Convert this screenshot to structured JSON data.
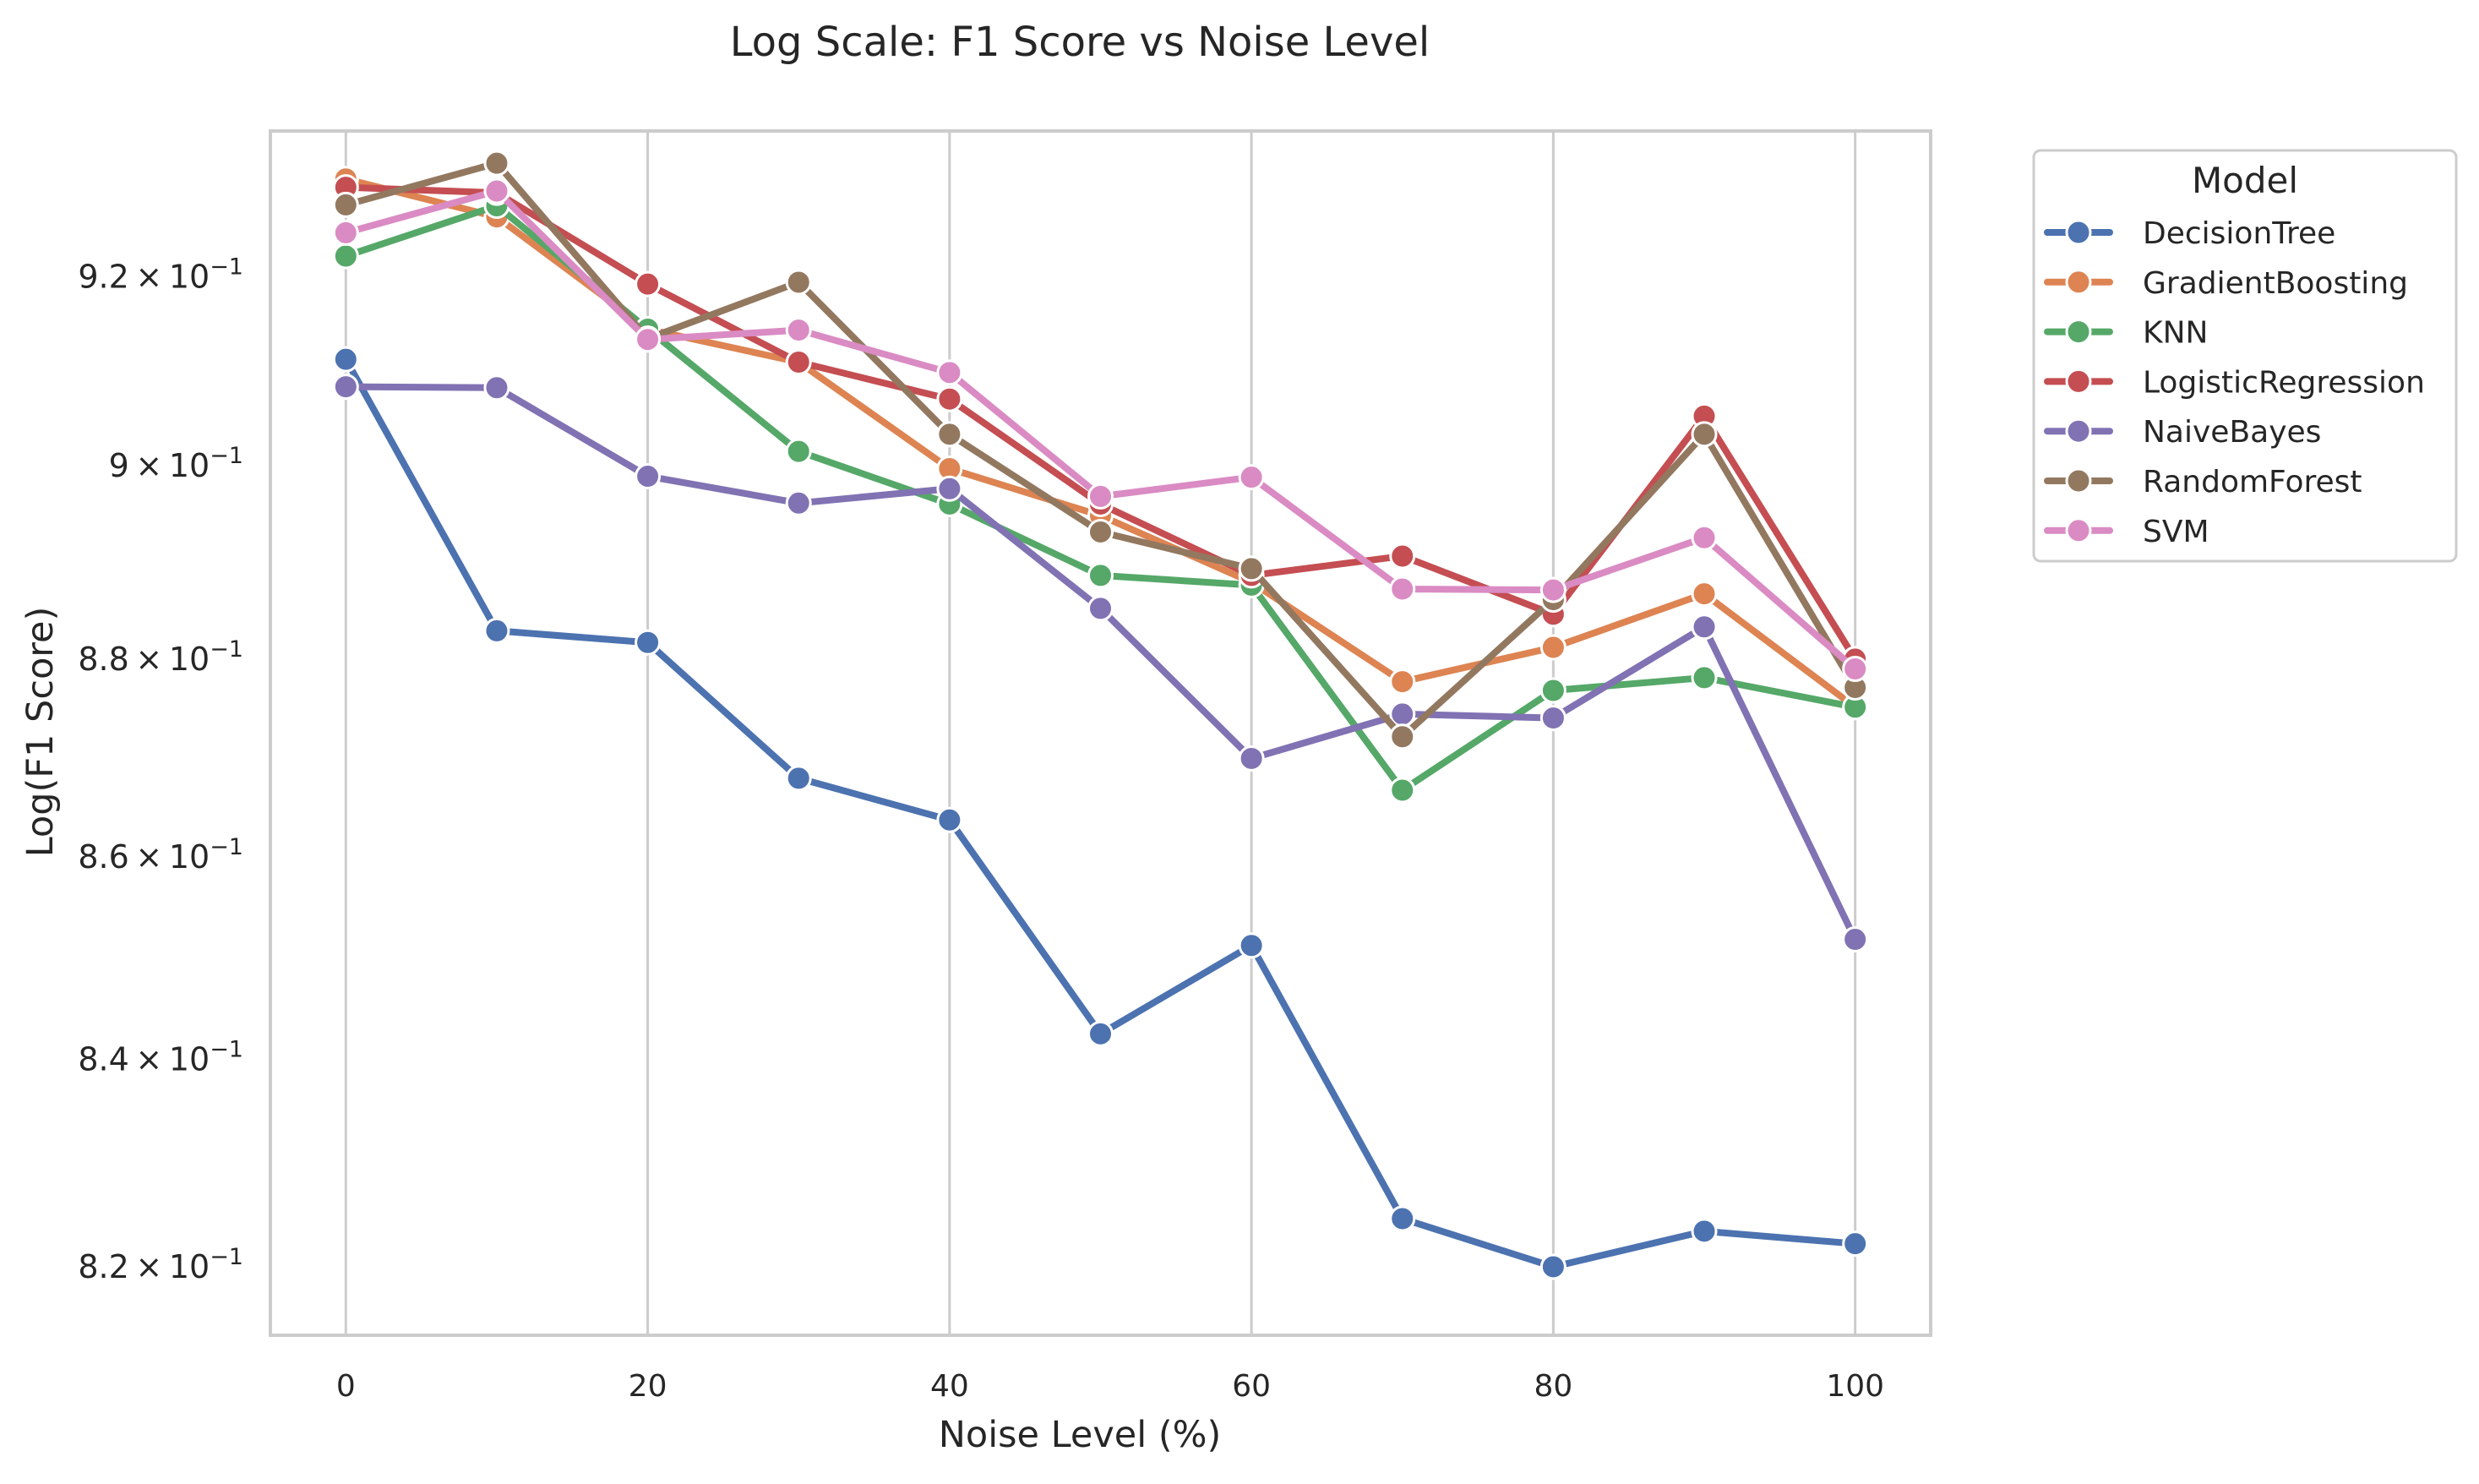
{
  "chart_data": {
    "type": "line",
    "title": "Log Scale: F1 Score vs Noise Level",
    "xlabel": "Noise Level (%)",
    "ylabel": "Log(F1 Score)",
    "y_scale": "log",
    "x": [
      0,
      10,
      20,
      30,
      40,
      50,
      60,
      70,
      80,
      90,
      100
    ],
    "x_ticks": [
      0,
      20,
      40,
      60,
      80,
      100
    ],
    "x_tick_labels": [
      "0",
      "20",
      "40",
      "60",
      "80",
      "100"
    ],
    "xlim": [
      -5,
      105
    ],
    "ylim": [
      0.8135,
      0.9357
    ],
    "y_ticks": [
      0.82,
      0.84,
      0.86,
      0.88,
      0.9,
      0.92
    ],
    "y_tick_labels": [
      {
        "mantissa": "8.2",
        "base": "10",
        "exponent": "−1"
      },
      {
        "mantissa": "8.4",
        "base": "10",
        "exponent": "−1"
      },
      {
        "mantissa": "8.6",
        "base": "10",
        "exponent": "−1"
      },
      {
        "mantissa": "8.8",
        "base": "10",
        "exponent": "−1"
      },
      {
        "mantissa": "9",
        "base": "10",
        "exponent": "−1"
      },
      {
        "mantissa": "9.2",
        "base": "10",
        "exponent": "−1"
      }
    ],
    "grid": "vertical",
    "legend": {
      "title": "Model",
      "position": "outside-top-right"
    },
    "series": [
      {
        "name": "DecisionTree",
        "color": "#4c72b0",
        "values": [
          0.9112,
          0.8829,
          0.8817,
          0.8679,
          0.8637,
          0.8425,
          0.8512,
          0.8246,
          0.82,
          0.8234,
          0.8222
        ]
      },
      {
        "name": "GradientBoosting",
        "color": "#dd8452",
        "values": [
          0.9305,
          0.9264,
          0.9144,
          0.9109,
          0.8997,
          0.8948,
          0.8879,
          0.8777,
          0.8812,
          0.8867,
          0.8751
        ]
      },
      {
        "name": "KNN",
        "color": "#55a868",
        "values": [
          0.9222,
          0.9276,
          0.9144,
          0.9015,
          0.896,
          0.8886,
          0.8876,
          0.8667,
          0.8768,
          0.8781,
          0.8751
        ]
      },
      {
        "name": "LogisticRegression",
        "color": "#c44e52",
        "values": [
          0.9296,
          0.929,
          0.9192,
          0.9109,
          0.907,
          0.896,
          0.8886,
          0.8906,
          0.8846,
          0.9052,
          0.88
        ]
      },
      {
        "name": "NaiveBayes",
        "color": "#8172b3",
        "values": [
          0.9083,
          0.9082,
          0.8989,
          0.8961,
          0.8976,
          0.8852,
          0.8699,
          0.8744,
          0.874,
          0.8833,
          0.8518
        ]
      },
      {
        "name": "RandomForest",
        "color": "#937860",
        "values": [
          0.9277,
          0.9322,
          0.9134,
          0.9194,
          0.9033,
          0.8931,
          0.8893,
          0.8721,
          0.8861,
          0.9033,
          0.8771
        ]
      },
      {
        "name": "SVM",
        "color": "#da8bc3",
        "values": [
          0.9247,
          0.9292,
          0.9133,
          0.9143,
          0.9098,
          0.8968,
          0.8988,
          0.8872,
          0.8871,
          0.8925,
          0.879
        ]
      }
    ]
  }
}
